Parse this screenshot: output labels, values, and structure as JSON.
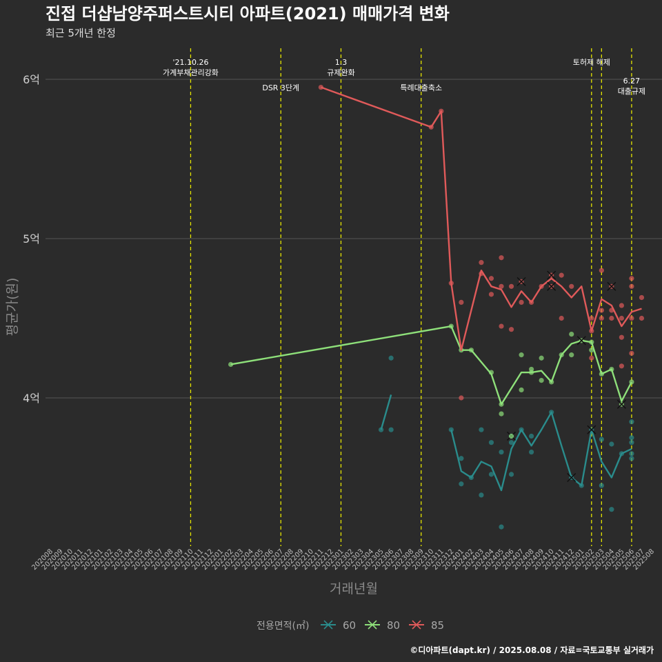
{
  "header": {
    "title": "진접 더샵남양주퍼스트시티 아파트(2021) 매매가격 변화",
    "subtitle": "최근 5개년 한정"
  },
  "caption": "©디아파트(dapt.kr) / 2025.08.08 / 자료=국토교통부 실거래가",
  "legend": {
    "title": "전용면적(㎡)",
    "items": [
      {
        "label": "60",
        "color": "#2a8c8c"
      },
      {
        "label": "80",
        "color": "#8ee07a"
      },
      {
        "label": "85",
        "color": "#e05a5a"
      }
    ]
  },
  "colors": {
    "background": "#2b2b2b",
    "grid": "#555555",
    "event_line": "#e6e600"
  },
  "chart_data": {
    "type": "line",
    "title": "진접 더샵남양주퍼스트시티 아파트(2021) 매매가격 변화",
    "subtitle": "최근 5개년 한정",
    "xlabel": "거래년월",
    "ylabel": "평균가(원)",
    "categories": [
      "202008",
      "202009",
      "202010",
      "202011",
      "202012",
      "202101",
      "202102",
      "202103",
      "202104",
      "202105",
      "202106",
      "202107",
      "202108",
      "202109",
      "202110",
      "202111",
      "202112",
      "202201",
      "202202",
      "202203",
      "202204",
      "202205",
      "202206",
      "202207",
      "202208",
      "202209",
      "202210",
      "202211",
      "202212",
      "202301",
      "202302",
      "202303",
      "202304",
      "202305",
      "202306",
      "202307",
      "202308",
      "202309",
      "202310",
      "202311",
      "202312",
      "202401",
      "202402",
      "202403",
      "202404",
      "202405",
      "202406",
      "202407",
      "202408",
      "202409",
      "202410",
      "202411",
      "202412",
      "202501",
      "202502",
      "202503",
      "202504",
      "202505",
      "202506",
      "202507",
      "202508"
    ],
    "y_ticks": [
      {
        "value": 4.0,
        "label": "4억"
      },
      {
        "value": 5.0,
        "label": "5억"
      },
      {
        "value": 6.0,
        "label": "6억"
      }
    ],
    "ylim": [
      3.05,
      6.25
    ],
    "grid": true,
    "legend_position": "bottom",
    "events": [
      {
        "x": "202110",
        "lines": [
          "'21.10.26",
          "가계부채관리강화"
        ],
        "row": "top"
      },
      {
        "x": "202207",
        "lines": [
          "DSR 3단계"
        ],
        "row": "middle"
      },
      {
        "x": "202301",
        "lines": [
          "1.3",
          "규제완화"
        ],
        "row": "top"
      },
      {
        "x": "202309",
        "lines": [
          "특례대출축소"
        ],
        "row": "middle"
      },
      {
        "x": "202502",
        "lines": [
          "토허제 해제"
        ],
        "row": "top"
      },
      {
        "x": "202503",
        "lines": [],
        "row": "none"
      },
      {
        "x": "202506",
        "lines": [
          "6.27",
          "대출규제"
        ],
        "row": "lower"
      }
    ],
    "series": [
      {
        "name": "60",
        "color": "#2a8c8c",
        "segments": [
          [
            [
              "202305",
              3.8
            ],
            [
              "202306",
              4.02
            ]
          ],
          [
            [
              "202312",
              3.8
            ],
            [
              "202401",
              3.54
            ],
            [
              "202402",
              3.5
            ],
            [
              "202403",
              3.6
            ],
            [
              "202404",
              3.57
            ],
            [
              "202405",
              3.42
            ],
            [
              "202406",
              3.68
            ],
            [
              "202407",
              3.8
            ],
            [
              "202408",
              3.7
            ],
            [
              "202409",
              3.8
            ],
            [
              "202410",
              3.91
            ],
            [
              "202411",
              3.7
            ],
            [
              "202412",
              3.5
            ],
            [
              "202501",
              3.45
            ],
            [
              "202502",
              3.8
            ],
            [
              "202503",
              3.6
            ],
            [
              "202504",
              3.5
            ],
            [
              "202505",
              3.65
            ],
            [
              "202506",
              3.68
            ]
          ]
        ],
        "points": [
          [
            "202305",
            3.8
          ],
          [
            "202306",
            4.25
          ],
          [
            "202306",
            3.8
          ],
          [
            "202312",
            3.8
          ],
          [
            "202401",
            3.46
          ],
          [
            "202401",
            3.62
          ],
          [
            "202402",
            3.5
          ],
          [
            "202403",
            3.8
          ],
          [
            "202403",
            3.39
          ],
          [
            "202404",
            3.72
          ],
          [
            "202404",
            3.52
          ],
          [
            "202405",
            3.66
          ],
          [
            "202405",
            3.19
          ],
          [
            "202406",
            3.76
          ],
          [
            "202406",
            3.52
          ],
          [
            "202406",
            3.72
          ],
          [
            "202407",
            3.8
          ],
          [
            "202408",
            3.66
          ],
          [
            "202408",
            3.76
          ],
          [
            "202410",
            3.91
          ],
          [
            "202412",
            3.5
          ],
          [
            "202501",
            3.45
          ],
          [
            "202502",
            3.8
          ],
          [
            "202503",
            3.74
          ],
          [
            "202503",
            3.45
          ],
          [
            "202504",
            3.71
          ],
          [
            "202504",
            3.3
          ],
          [
            "202505",
            3.65
          ],
          [
            "202506",
            3.85
          ],
          [
            "202506",
            3.75
          ],
          [
            "202506",
            3.72
          ],
          [
            "202506",
            3.62
          ],
          [
            "202506",
            3.65
          ]
        ],
        "crosses": [
          [
            "202406",
            3.76
          ],
          [
            "202412",
            3.5
          ],
          [
            "202502",
            3.8
          ]
        ]
      },
      {
        "name": "80",
        "color": "#8ee07a",
        "segments": [
          [
            [
              "202202",
              4.21
            ],
            [
              "202312",
              4.45
            ],
            [
              "202401",
              4.3
            ],
            [
              "202402",
              4.3
            ],
            [
              "202404",
              4.15
            ],
            [
              "202405",
              3.96
            ],
            [
              "202407",
              4.16
            ],
            [
              "202408",
              4.16
            ],
            [
              "202409",
              4.17
            ],
            [
              "202410",
              4.1
            ],
            [
              "202411",
              4.27
            ],
            [
              "202412",
              4.34
            ],
            [
              "202501",
              4.36
            ],
            [
              "202502",
              4.35
            ],
            [
              "202503",
              4.15
            ],
            [
              "202504",
              4.18
            ],
            [
              "202505",
              3.98
            ],
            [
              "202506",
              4.1
            ]
          ]
        ],
        "points": [
          [
            "202202",
            4.21
          ],
          [
            "202312",
            4.45
          ],
          [
            "202401",
            4.3
          ],
          [
            "202402",
            4.3
          ],
          [
            "202404",
            4.16
          ],
          [
            "202405",
            3.9
          ],
          [
            "202405",
            3.96
          ],
          [
            "202406",
            3.76
          ],
          [
            "202407",
            4.27
          ],
          [
            "202407",
            4.05
          ],
          [
            "202408",
            4.16
          ],
          [
            "202408",
            4.18
          ],
          [
            "202409",
            4.25
          ],
          [
            "202409",
            4.11
          ],
          [
            "202410",
            4.1
          ],
          [
            "202411",
            4.27
          ],
          [
            "202412",
            4.4
          ],
          [
            "202412",
            4.27
          ],
          [
            "202501",
            4.36
          ],
          [
            "202502",
            4.35
          ],
          [
            "202502",
            4.3
          ],
          [
            "202503",
            4.15
          ],
          [
            "202504",
            4.18
          ],
          [
            "202505",
            3.96
          ],
          [
            "202506",
            4.1
          ]
        ],
        "crosses": [
          [
            "202501",
            4.36
          ],
          [
            "202505",
            3.96
          ]
        ]
      },
      {
        "name": "85",
        "color": "#e05a5a",
        "segments": [
          [
            [
              "202211",
              5.95
            ],
            [
              "202310",
              5.7
            ],
            [
              "202311",
              5.8
            ],
            [
              "202312",
              4.72
            ],
            [
              "202401",
              4.3
            ],
            [
              "202403",
              4.8
            ],
            [
              "202404",
              4.7
            ],
            [
              "202405",
              4.68
            ],
            [
              "202406",
              4.57
            ],
            [
              "202407",
              4.67
            ],
            [
              "202408",
              4.6
            ],
            [
              "202409",
              4.7
            ],
            [
              "202410",
              4.75
            ],
            [
              "202411",
              4.7
            ],
            [
              "202412",
              4.63
            ],
            [
              "202501",
              4.7
            ],
            [
              "202502",
              4.42
            ],
            [
              "202503",
              4.62
            ],
            [
              "202504",
              4.58
            ],
            [
              "202505",
              4.45
            ],
            [
              "202506",
              4.54
            ],
            [
              "202507",
              4.56
            ]
          ]
        ],
        "points": [
          [
            "202211",
            5.95
          ],
          [
            "202310",
            5.7
          ],
          [
            "202311",
            5.8
          ],
          [
            "202312",
            4.72
          ],
          [
            "202401",
            4.6
          ],
          [
            "202401",
            4.0
          ],
          [
            "202403",
            4.85
          ],
          [
            "202403",
            4.78
          ],
          [
            "202404",
            4.75
          ],
          [
            "202404",
            4.65
          ],
          [
            "202405",
            4.88
          ],
          [
            "202405",
            4.7
          ],
          [
            "202405",
            4.45
          ],
          [
            "202406",
            4.7
          ],
          [
            "202406",
            4.43
          ],
          [
            "202407",
            4.73
          ],
          [
            "202407",
            4.6
          ],
          [
            "202408",
            4.6
          ],
          [
            "202409",
            4.7
          ],
          [
            "202410",
            4.77
          ],
          [
            "202410",
            4.7
          ],
          [
            "202411",
            4.77
          ],
          [
            "202411",
            4.5
          ],
          [
            "202412",
            4.7
          ],
          [
            "202502",
            4.5
          ],
          [
            "202502",
            4.42
          ],
          [
            "202502",
            4.25
          ],
          [
            "202503",
            4.8
          ],
          [
            "202503",
            4.55
          ],
          [
            "202503",
            4.5
          ],
          [
            "202504",
            4.7
          ],
          [
            "202504",
            4.55
          ],
          [
            "202504",
            4.5
          ],
          [
            "202505",
            4.58
          ],
          [
            "202505",
            4.5
          ],
          [
            "202505",
            4.38
          ],
          [
            "202505",
            4.2
          ],
          [
            "202506",
            4.75
          ],
          [
            "202506",
            4.7
          ],
          [
            "202506",
            4.5
          ],
          [
            "202506",
            4.28
          ],
          [
            "202507",
            4.63
          ],
          [
            "202507",
            4.5
          ]
        ],
        "crosses": [
          [
            "202407",
            4.73
          ],
          [
            "202410",
            4.77
          ],
          [
            "202410",
            4.7
          ],
          [
            "202504",
            4.7
          ]
        ]
      }
    ]
  }
}
